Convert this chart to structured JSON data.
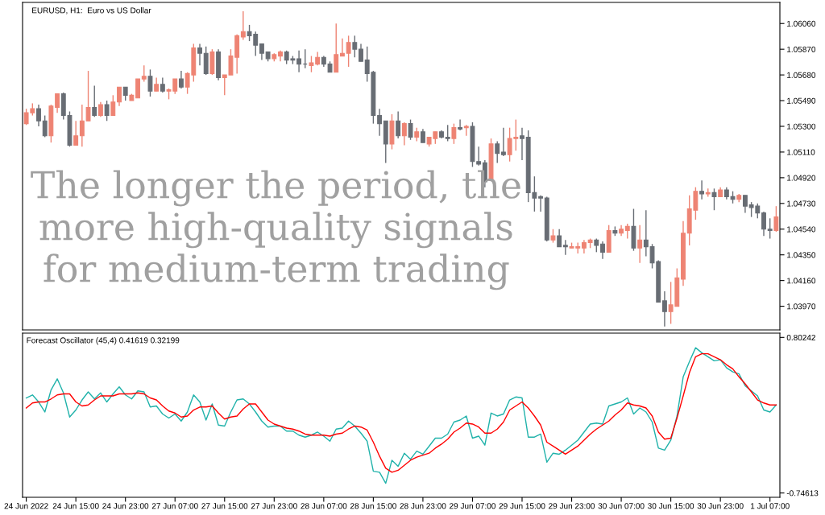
{
  "chart_data": [
    {
      "type": "candlestick",
      "title": "EURUSD, H1:  Euro vs US Dollar",
      "categories": [
        null,
        null,
        null,
        null,
        null,
        null,
        null,
        null,
        null,
        null,
        null,
        null,
        null,
        null,
        null,
        null,
        null,
        null,
        null,
        null,
        null,
        null,
        null,
        null,
        null,
        null,
        null,
        null,
        null,
        null,
        null,
        null,
        null,
        null,
        null,
        null,
        null,
        null,
        null,
        null,
        null,
        null,
        null,
        null,
        null,
        null,
        null,
        null,
        null,
        null,
        null,
        null,
        null,
        null,
        null,
        null,
        null,
        null,
        null,
        null,
        null,
        null,
        null,
        null,
        null,
        null,
        null,
        null,
        null,
        null,
        null,
        null,
        null,
        null,
        null,
        null,
        null,
        null,
        null,
        null,
        null,
        null,
        null,
        null,
        null,
        null,
        null,
        null,
        null,
        null,
        null,
        null,
        null,
        null,
        null,
        null,
        null,
        null,
        null,
        null,
        null,
        null,
        null,
        null,
        null,
        null,
        null,
        null,
        null,
        null,
        null,
        null,
        null,
        null,
        null,
        null,
        null,
        null,
        null,
        null,
        null,
        null
      ],
      "ohlc": [
        [
          1.0532,
          1.0543,
          1.0531,
          1.054
        ],
        [
          1.054,
          1.0547,
          1.0538,
          1.0543
        ],
        [
          1.0543,
          1.0546,
          1.053,
          1.0534
        ],
        [
          1.0534,
          1.0538,
          1.0522,
          1.0523
        ],
        [
          1.0523,
          1.0546,
          1.0518,
          1.0545
        ],
        [
          1.0544,
          1.0554,
          1.054,
          1.0554
        ],
        [
          1.0554,
          1.0555,
          1.0535,
          1.0538
        ],
        [
          1.0538,
          1.0541,
          1.0515,
          1.0516
        ],
        [
          1.0516,
          1.0534,
          1.0516,
          1.0523
        ],
        [
          1.0523,
          1.0546,
          1.0515,
          1.0534
        ],
        [
          1.0534,
          1.0571,
          1.0534,
          1.0544
        ],
        [
          1.0544,
          1.056,
          1.0537,
          1.0538
        ],
        [
          1.0538,
          1.0548,
          1.0537,
          1.0546
        ],
        [
          1.0546,
          1.0549,
          1.0534,
          1.0538
        ],
        [
          1.0538,
          1.0553,
          1.0538,
          1.0548
        ],
        [
          1.0548,
          1.0559,
          1.0545,
          1.0559
        ],
        [
          1.0559,
          1.0559,
          1.0549,
          1.0553
        ],
        [
          1.0549,
          1.0554,
          1.0549,
          1.0553
        ],
        [
          1.0551,
          1.0565,
          1.0551,
          1.0565
        ],
        [
          1.0565,
          1.0575,
          1.0563,
          1.0567
        ],
        [
          1.0567,
          1.0572,
          1.0552,
          1.0556
        ],
        [
          1.0556,
          1.0566,
          1.0556,
          1.0561
        ],
        [
          1.0561,
          1.0566,
          1.0555,
          1.0556
        ],
        [
          1.0556,
          1.0558,
          1.055,
          1.0557
        ],
        [
          1.0556,
          1.0565,
          1.0554,
          1.0565
        ],
        [
          1.0565,
          1.0571,
          1.0558,
          1.0559
        ],
        [
          1.0559,
          1.057,
          1.0554,
          1.0569
        ],
        [
          1.0568,
          1.0591,
          1.0563,
          1.0588
        ],
        [
          1.0588,
          1.0591,
          1.0575,
          1.0584
        ],
        [
          1.0584,
          1.0589,
          1.0568,
          1.0569
        ],
        [
          1.0569,
          1.0587,
          1.0568,
          1.0585
        ],
        [
          1.0585,
          1.0587,
          1.0564,
          1.0566
        ],
        [
          1.0566,
          1.0568,
          1.0553,
          1.0568
        ],
        [
          1.0568,
          1.0587,
          1.0568,
          1.0582
        ],
        [
          1.0581,
          1.0598,
          1.0569,
          1.0597
        ],
        [
          1.0596,
          1.0615,
          1.0594,
          1.06
        ],
        [
          1.06,
          1.0605,
          1.0593,
          1.0597
        ],
        [
          1.0598,
          1.06,
          1.0582,
          1.059
        ],
        [
          1.0591,
          1.0591,
          1.0579,
          1.0584
        ],
        [
          1.0585,
          1.0585,
          1.0578,
          1.058
        ],
        [
          1.058,
          1.0584,
          1.0578,
          1.0583
        ],
        [
          1.0582,
          1.0586,
          1.0578,
          1.0585
        ],
        [
          1.0585,
          1.0586,
          1.0576,
          1.0579
        ],
        [
          1.058,
          1.0582,
          1.0576,
          1.0579
        ],
        [
          1.058,
          1.0586,
          1.057,
          1.0576
        ],
        [
          1.0576,
          1.0587,
          1.0573,
          1.0576
        ],
        [
          1.0575,
          1.0582,
          1.057,
          1.0577
        ],
        [
          1.0576,
          1.0585,
          1.0575,
          1.0581
        ],
        [
          1.0581,
          1.0582,
          1.0574,
          1.0576
        ],
        [
          1.0576,
          1.0578,
          1.057,
          1.057
        ],
        [
          1.057,
          1.0606,
          1.057,
          1.0583
        ],
        [
          1.0582,
          1.0595,
          1.0582,
          1.0584
        ],
        [
          1.0584,
          1.0597,
          1.0574,
          1.0592
        ],
        [
          1.0592,
          1.0597,
          1.0581,
          1.0587
        ],
        [
          1.0587,
          1.0591,
          1.0578,
          1.0578
        ],
        [
          1.0579,
          1.0589,
          1.0563,
          1.0569
        ],
        [
          1.057,
          1.0571,
          1.0532,
          1.0538
        ],
        [
          1.0538,
          1.0543,
          1.0523,
          1.0532
        ],
        [
          1.0534,
          1.0534,
          1.0503,
          1.0517
        ],
        [
          1.0517,
          1.0539,
          1.0513,
          1.0534
        ],
        [
          1.0534,
          1.0541,
          1.0521,
          1.0523
        ],
        [
          1.0523,
          1.0533,
          1.0516,
          1.0532
        ],
        [
          1.0532,
          1.0535,
          1.052,
          1.0522
        ],
        [
          1.0522,
          1.0529,
          1.0519,
          1.0526
        ],
        [
          1.0526,
          1.0528,
          1.0518,
          1.0518
        ],
        [
          1.0517,
          1.0522,
          1.0515,
          1.0522
        ],
        [
          1.0521,
          1.0526,
          1.0517,
          1.0526
        ],
        [
          1.0526,
          1.0527,
          1.0521,
          1.0522
        ],
        [
          1.0522,
          1.0531,
          1.0519,
          1.0521
        ],
        [
          1.0521,
          1.0532,
          1.0517,
          1.0529
        ],
        [
          1.0529,
          1.0535,
          1.0527,
          1.0528
        ],
        [
          1.0529,
          1.0531,
          1.0523,
          1.053
        ],
        [
          1.053,
          1.0533,
          1.05,
          1.0504
        ],
        [
          1.0504,
          1.0515,
          1.0501,
          1.0502
        ],
        [
          1.0503,
          1.0505,
          1.0485,
          1.0489
        ],
        [
          1.049,
          1.0521,
          1.049,
          1.0517
        ],
        [
          1.0517,
          1.0519,
          1.0503,
          1.051
        ],
        [
          1.0511,
          1.0529,
          1.0508,
          1.0509
        ],
        [
          1.0509,
          1.0529,
          1.0504,
          1.0521
        ],
        [
          1.0521,
          1.0535,
          1.0512,
          1.0522
        ],
        [
          1.0523,
          1.0529,
          1.0505,
          1.0521
        ],
        [
          1.0522,
          1.0527,
          1.0474,
          1.0481
        ],
        [
          1.0481,
          1.0493,
          1.0467,
          1.0477
        ],
        [
          1.0478,
          1.0479,
          1.0467,
          1.0477
        ],
        [
          1.0477,
          1.0478,
          1.0445,
          1.0446
        ],
        [
          1.0446,
          1.0454,
          1.0444,
          1.0449
        ],
        [
          1.0449,
          1.0454,
          1.0441,
          1.0441
        ],
        [
          1.0442,
          1.0446,
          1.0435,
          1.0441
        ],
        [
          1.044,
          1.0444,
          1.044,
          1.0441
        ],
        [
          1.044,
          1.0444,
          1.0436,
          1.0441
        ],
        [
          1.044,
          1.0446,
          1.0436,
          1.0444
        ],
        [
          1.0444,
          1.0447,
          1.044,
          1.0446
        ],
        [
          1.0446,
          1.0447,
          1.0437,
          1.0442
        ],
        [
          1.0443,
          1.0445,
          1.0432,
          1.0437
        ],
        [
          1.0437,
          1.0457,
          1.0437,
          1.0453
        ],
        [
          1.0453,
          1.0456,
          1.0449,
          1.0451
        ],
        [
          1.0451,
          1.0457,
          1.0449,
          1.0454
        ],
        [
          1.0453,
          1.0458,
          1.0447,
          1.0456
        ],
        [
          1.0456,
          1.0469,
          1.0438,
          1.044
        ],
        [
          1.044,
          1.0457,
          1.0429,
          1.0446
        ],
        [
          1.0446,
          1.0468,
          1.0434,
          1.0441
        ],
        [
          1.0441,
          1.0443,
          1.0425,
          1.0429
        ],
        [
          1.043,
          1.0431,
          1.04,
          1.04
        ],
        [
          1.0401,
          1.0408,
          1.0382,
          1.0393
        ],
        [
          1.0393,
          1.0415,
          1.0384,
          1.0398
        ],
        [
          1.0397,
          1.0425,
          1.0397,
          1.0418
        ],
        [
          1.0417,
          1.046,
          1.0412,
          1.0451
        ],
        [
          1.0451,
          1.0479,
          1.0442,
          1.0469
        ],
        [
          1.0468,
          1.0485,
          1.0461,
          1.0482
        ],
        [
          1.0482,
          1.049,
          1.0476,
          1.048
        ],
        [
          1.048,
          1.0484,
          1.0478,
          1.0481
        ],
        [
          1.0481,
          1.0484,
          1.0468,
          1.0478
        ],
        [
          1.0478,
          1.0485,
          1.0478,
          1.0483
        ],
        [
          1.0483,
          1.0485,
          1.0476,
          1.0478
        ],
        [
          1.0478,
          1.0482,
          1.0473,
          1.0476
        ],
        [
          1.0476,
          1.048,
          1.0474,
          1.0479
        ],
        [
          1.0479,
          1.0479,
          1.0466,
          1.0471
        ],
        [
          1.0472,
          1.0474,
          1.0463,
          1.047
        ],
        [
          1.0471,
          1.0473,
          1.0462,
          1.0466
        ],
        [
          1.0466,
          1.0467,
          1.0449,
          1.0454
        ],
        [
          1.0454,
          1.0462,
          1.0447,
          1.0453
        ],
        [
          1.0453,
          1.0471,
          1.0452,
          1.0463
        ]
      ],
      "colors": [
        "#ee8474",
        "#ee8474",
        "#686d74",
        "#686d74",
        "#ee8474",
        "#ee8474",
        "#686d74",
        "#686d74",
        "#ee8474",
        "#ee8474",
        "#ee8474",
        "#686d74",
        "#ee8474",
        "#686d74",
        "#ee8474",
        "#ee8474",
        "#686d74",
        "#ee8474",
        "#ee8474",
        "#ee8474",
        "#686d74",
        "#ee8474",
        "#686d74",
        "#ee8474",
        "#ee8474",
        "#686d74",
        "#ee8474",
        "#ee8474",
        "#686d74",
        "#686d74",
        "#ee8474",
        "#686d74",
        "#ee8474",
        "#ee8474",
        "#ee8474",
        "#ee8474",
        "#686d74",
        "#686d74",
        "#686d74",
        "#686d74",
        "#ee8474",
        "#ee8474",
        "#686d74",
        "#686d74",
        "#686d74",
        "#686d74",
        "#ee8474",
        "#ee8474",
        "#686d74",
        "#686d74",
        "#ee8474",
        "#ee8474",
        "#ee8474",
        "#686d74",
        "#686d74",
        "#686d74",
        "#686d74",
        "#686d74",
        "#686d74",
        "#ee8474",
        "#686d74",
        "#ee8474",
        "#686d74",
        "#ee8474",
        "#686d74",
        "#ee8474",
        "#ee8474",
        "#686d74",
        "#686d74",
        "#ee8474",
        "#686d74",
        "#ee8474",
        "#686d74",
        "#686d74",
        "#686d74",
        "#ee8474",
        "#686d74",
        "#686d74",
        "#ee8474",
        "#ee8474",
        "#686d74",
        "#686d74",
        "#686d74",
        "#686d74",
        "#686d74",
        "#ee8474",
        "#686d74",
        "#686d74",
        "#ee8474",
        "#ee8474",
        "#ee8474",
        "#ee8474",
        "#686d74",
        "#686d74",
        "#ee8474",
        "#686d74",
        "#ee8474",
        "#ee8474",
        "#686d74",
        "#ee8474",
        "#686d74",
        "#686d74",
        "#686d74",
        "#686d74",
        "#ee8474",
        "#ee8474",
        "#ee8474",
        "#ee8474",
        "#ee8474",
        "#686d74",
        "#ee8474",
        "#686d74",
        "#ee8474",
        "#686d74",
        "#686d74",
        "#ee8474",
        "#686d74",
        "#686d74",
        "#686d74",
        "#686d74",
        "#686d74",
        "#ee8474"
      ],
      "ylim": [
        1.03795,
        1.06216
      ],
      "yticks": [
        {
          "value": 1.0606,
          "label": "1.06060"
        },
        {
          "value": 1.0587,
          "label": "1.05870"
        },
        {
          "value": 1.0568,
          "label": "1.05680"
        },
        {
          "value": 1.0549,
          "label": "1.05490"
        },
        {
          "value": 1.053,
          "label": "1.05300"
        },
        {
          "value": 1.0511,
          "label": "1.05110"
        },
        {
          "value": 1.0492,
          "label": "1.04920"
        },
        {
          "value": 1.0473,
          "label": "1.04730"
        },
        {
          "value": 1.0454,
          "label": "1.04540"
        },
        {
          "value": 1.0435,
          "label": "1.04350"
        },
        {
          "value": 1.0416,
          "label": "1.04160"
        },
        {
          "value": 1.0397,
          "label": "1.03970"
        }
      ],
      "tick_labels": "y",
      "annotations": [
        "The longer the period, the\nmore high-quality signals\nfor medium-term trading"
      ]
    },
    {
      "type": "line",
      "title": "Forecast Oscillator (45,4) 0.41619 0.32199",
      "categories": [
        "24 Jun 2022",
        null,
        null,
        null,
        null,
        null,
        null,
        null,
        "24 Jun 15:00",
        null,
        null,
        null,
        null,
        null,
        null,
        null,
        "24 Jun 23:00",
        null,
        null,
        null,
        null,
        null,
        null,
        null,
        "27 Jun 07:00",
        null,
        null,
        null,
        null,
        null,
        null,
        null,
        "27 Jun 15:00",
        null,
        null,
        null,
        null,
        null,
        null,
        null,
        "27 Jun 23:00",
        null,
        null,
        null,
        null,
        null,
        null,
        null,
        "28 Jun 07:00",
        null,
        null,
        null,
        null,
        null,
        null,
        null,
        "28 Jun 15:00",
        null,
        null,
        null,
        null,
        null,
        null,
        null,
        "28 Jun 23:00",
        null,
        null,
        null,
        null,
        null,
        null,
        null,
        "29 Jun 07:00",
        null,
        null,
        null,
        null,
        null,
        null,
        null,
        "29 Jun 15:00",
        null,
        null,
        null,
        null,
        null,
        null,
        null,
        "29 Jun 23:00",
        null,
        null,
        null,
        null,
        null,
        null,
        null,
        "30 Jun 07:00",
        null,
        null,
        null,
        null,
        null,
        null,
        null,
        "30 Jun 15:00",
        null,
        null,
        null,
        null,
        null,
        null,
        null,
        "30 Jun 23:00",
        null,
        null,
        null,
        null,
        null,
        null,
        null,
        "1 Jul 07:00",
        null
      ],
      "series": [
        {
          "color": "#20b2aa",
          "values": [
            0.2,
            0.23,
            0.16,
            0.06,
            0.28,
            0.39,
            0.25,
            0.01,
            0.08,
            0.18,
            0.26,
            0.19,
            0.25,
            0.16,
            0.24,
            0.31,
            0.23,
            0.19,
            0.27,
            0.26,
            0.11,
            0.12,
            0.04,
            0.0,
            0.04,
            -0.03,
            0.06,
            0.23,
            0.16,
            -0.02,
            0.14,
            -0.07,
            -0.08,
            0.06,
            0.18,
            0.19,
            0.14,
            0.06,
            -0.03,
            -0.09,
            -0.08,
            -0.08,
            -0.13,
            -0.13,
            -0.17,
            -0.19,
            -0.17,
            -0.14,
            -0.18,
            -0.23,
            -0.11,
            -0.1,
            -0.03,
            -0.08,
            -0.15,
            -0.23,
            -0.53,
            -0.54,
            -0.65,
            -0.42,
            -0.48,
            -0.35,
            -0.41,
            -0.33,
            -0.36,
            -0.28,
            -0.2,
            -0.2,
            -0.16,
            -0.04,
            -0.02,
            0.02,
            -0.2,
            -0.18,
            -0.27,
            0.05,
            0.02,
            0.04,
            0.18,
            0.21,
            0.2,
            -0.19,
            -0.19,
            -0.16,
            -0.44,
            -0.35,
            -0.36,
            -0.32,
            -0.27,
            -0.22,
            -0.14,
            -0.06,
            -0.05,
            -0.06,
            0.12,
            0.14,
            0.16,
            0.2,
            0.04,
            0.1,
            0.06,
            -0.04,
            -0.3,
            -0.32,
            -0.22,
            0.02,
            0.41,
            0.56,
            0.7,
            0.65,
            0.61,
            0.57,
            0.58,
            0.5,
            0.46,
            0.44,
            0.32,
            0.27,
            0.22,
            0.08,
            0.06,
            0.13
          ]
        },
        {
          "color": "#ff0000",
          "values": [
            0.1,
            0.15,
            0.16,
            0.16,
            0.19,
            0.23,
            0.24,
            0.24,
            0.16,
            0.12,
            0.13,
            0.18,
            0.22,
            0.22,
            0.22,
            0.24,
            0.24,
            0.24,
            0.25,
            0.24,
            0.2,
            0.18,
            0.12,
            0.07,
            0.05,
            0.01,
            0.02,
            0.08,
            0.11,
            0.11,
            0.12,
            0.05,
            -0.01,
            0.01,
            0.02,
            0.09,
            0.14,
            0.14,
            0.06,
            -0.02,
            -0.06,
            -0.08,
            -0.1,
            -0.11,
            -0.13,
            -0.16,
            -0.17,
            -0.17,
            -0.17,
            -0.18,
            -0.16,
            -0.15,
            -0.11,
            -0.08,
            -0.09,
            -0.12,
            -0.24,
            -0.38,
            -0.5,
            -0.54,
            -0.52,
            -0.47,
            -0.42,
            -0.39,
            -0.37,
            -0.35,
            -0.3,
            -0.26,
            -0.21,
            -0.14,
            -0.1,
            -0.05,
            -0.06,
            -0.09,
            -0.15,
            -0.15,
            -0.11,
            -0.04,
            0.08,
            0.12,
            0.16,
            0.1,
            0.02,
            -0.07,
            -0.24,
            -0.28,
            -0.32,
            -0.36,
            -0.32,
            -0.28,
            -0.22,
            -0.16,
            -0.11,
            -0.07,
            -0.03,
            0.03,
            0.08,
            0.15,
            0.13,
            0.12,
            0.1,
            0.02,
            -0.14,
            -0.21,
            -0.2,
            0.0,
            0.22,
            0.45,
            0.61,
            0.64,
            0.64,
            0.61,
            0.58,
            0.53,
            0.49,
            0.41,
            0.34,
            0.26,
            0.18,
            0.15,
            0.13,
            0.13
          ]
        }
      ],
      "ylim": [
        -0.789,
        0.845
      ],
      "yticks": [
        0.80242,
        -0.74613
      ]
    }
  ]
}
